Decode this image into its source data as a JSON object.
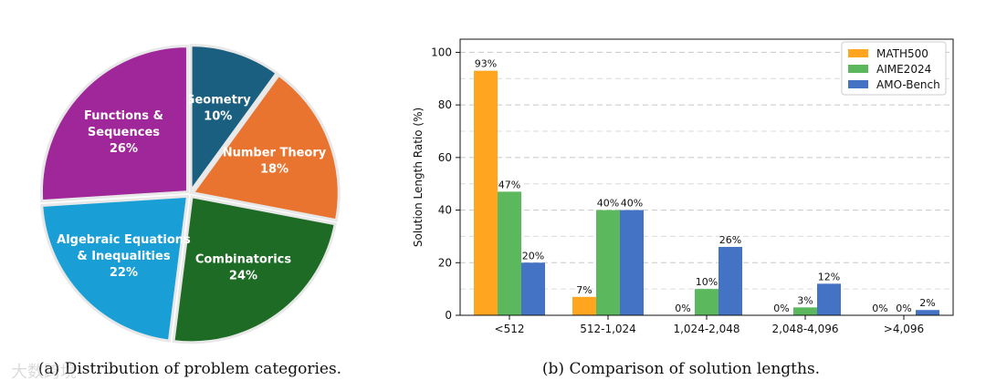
{
  "chart_data": [
    {
      "type": "pie",
      "caption": "(a) Distribution of problem categories.",
      "slices": [
        {
          "name_lines": [
            "Geometry"
          ],
          "label": "10%",
          "value": 10,
          "color": "#1a5f7f"
        },
        {
          "name_lines": [
            "Number Theory"
          ],
          "label": "18%",
          "value": 18,
          "color": "#e8742f"
        },
        {
          "name_lines": [
            "Combinatorics"
          ],
          "label": "24%",
          "value": 24,
          "color": "#1d6b24"
        },
        {
          "name_lines": [
            "Algebraic Equations",
            "& Inequalities"
          ],
          "label": "22%",
          "value": 22,
          "color": "#199fd6"
        },
        {
          "name_lines": [
            "Functions &",
            "Sequences"
          ],
          "label": "26%",
          "value": 26,
          "color": "#a0279a"
        }
      ]
    },
    {
      "type": "bar",
      "caption": "(b) Comparison of solution lengths.",
      "ylabel": "Solution Length Ratio (%)",
      "ylim": [
        0,
        105
      ],
      "yticks": [
        "0",
        "20",
        "40",
        "60",
        "80",
        "100"
      ],
      "categories": [
        "<512",
        "512-1,024",
        "1,024-2,048",
        "2,048-4,096",
        ">4,096"
      ],
      "series": [
        {
          "name": "MATH500",
          "color": "#ffa51f",
          "values": [
            93,
            7,
            0,
            0,
            0
          ],
          "labels": [
            "93%",
            "7%",
            "0%",
            "0%",
            "0%"
          ]
        },
        {
          "name": "AIME2024",
          "color": "#5cb85c",
          "values": [
            47,
            40,
            10,
            3,
            0
          ],
          "labels": [
            "47%",
            "40%",
            "10%",
            "3%",
            "0%"
          ]
        },
        {
          "name": "AMO-Bench",
          "color": "#4472c4",
          "values": [
            20,
            40,
            26,
            12,
            2
          ],
          "labels": [
            "20%",
            "40%",
            "26%",
            "12%",
            "2%"
          ]
        }
      ],
      "legend_position": "top-right",
      "grid": "horizontal dashed"
    }
  ],
  "watermark_text": "大数跨境"
}
